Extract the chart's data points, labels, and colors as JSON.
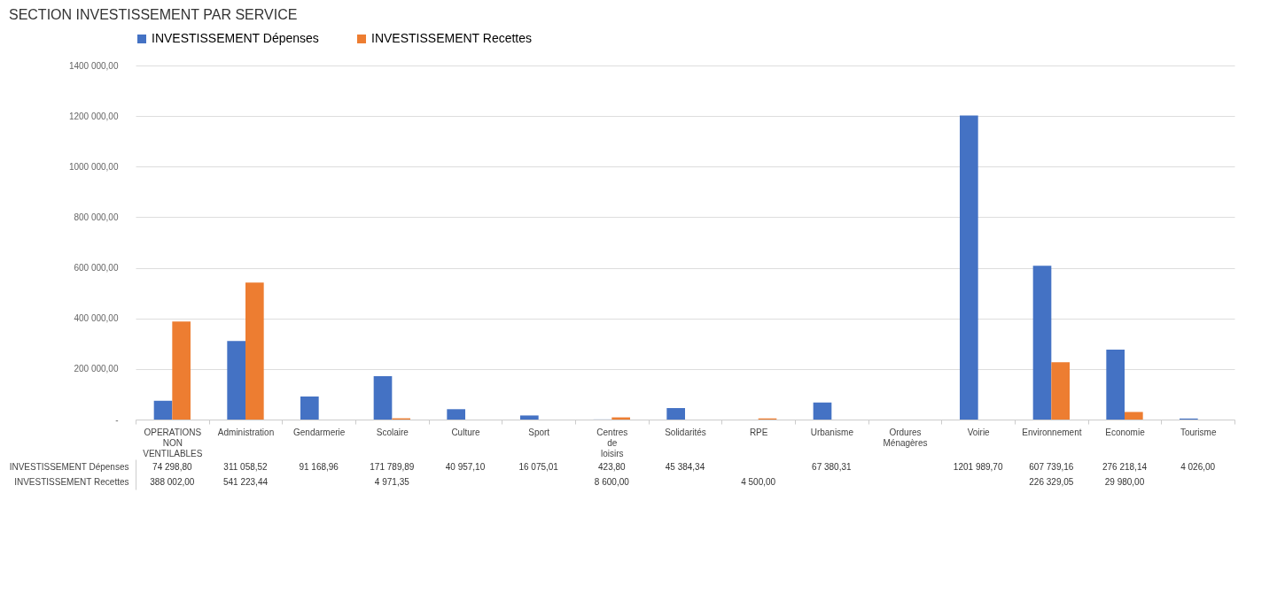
{
  "chart_data": {
    "type": "bar",
    "title": "SECTION INVESTISSEMENT PAR SERVICE",
    "categories": [
      "OPERATIONS NON VENTILABLES",
      "Administration",
      "Gendarmerie",
      "Scolaire",
      "Culture",
      "Sport",
      "Centres de loisirs",
      "Solidarités",
      "RPE",
      "Urbanisme",
      "Ordures Ménagères",
      "Voirie",
      "Environnement",
      "Economie",
      "Tourisme"
    ],
    "series": [
      {
        "name": "INVESTISSEMENT Dépenses",
        "color": "#4472c4",
        "values": [
          74298.8,
          311058.52,
          91168.96,
          171789.89,
          40957.1,
          16075.01,
          423.8,
          45384.34,
          null,
          67380.31,
          null,
          1201989.7,
          607739.16,
          276218.14,
          4026.0
        ],
        "value_labels": [
          "74 298,80",
          "311 058,52",
          "91 168,96",
          "171 789,89",
          "40 957,10",
          "16 075,01",
          "423,80",
          "45 384,34",
          null,
          "67 380,31",
          null,
          "1201 989,70",
          "607 739,16",
          "276 218,14",
          "4 026,00"
        ]
      },
      {
        "name": "INVESTISSEMENT Recettes",
        "color": "#ed7d31",
        "values": [
          388002.0,
          541223.44,
          null,
          4971.35,
          null,
          null,
          8600.0,
          null,
          4500.0,
          null,
          null,
          null,
          226329.05,
          29980.0,
          null
        ],
        "value_labels": [
          "388 002,00",
          "541 223,44",
          null,
          "4 971,35",
          null,
          null,
          "8 600,00",
          null,
          "4 500,00",
          null,
          null,
          null,
          "226 329,05",
          "29 980,00",
          null
        ]
      }
    ],
    "ylim": [
      0,
      1400000
    ],
    "yticks": [
      {
        "value": 0,
        "label": "-"
      },
      {
        "value": 200000,
        "label": "200 000,00"
      },
      {
        "value": 400000,
        "label": "400 000,00"
      },
      {
        "value": 600000,
        "label": "600 000,00"
      },
      {
        "value": 800000,
        "label": "800 000,00"
      },
      {
        "value": 1000000,
        "label": "1000 000,00"
      },
      {
        "value": 1200000,
        "label": "1200 000,00"
      },
      {
        "value": 1400000,
        "label": "1400 000,00"
      }
    ],
    "grid": "y",
    "legend": "top"
  }
}
